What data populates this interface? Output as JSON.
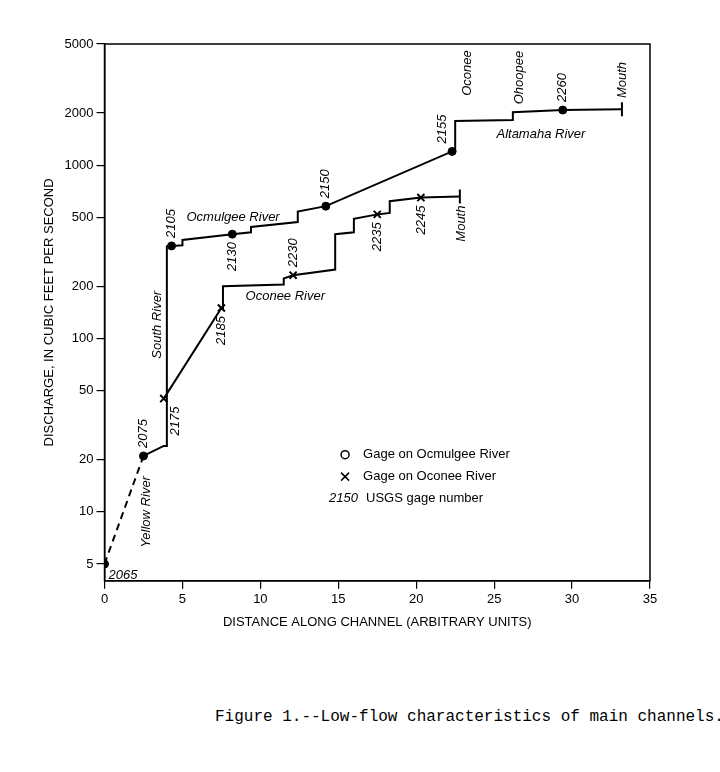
{
  "chart_data": {
    "type": "line",
    "caption": "Figure 1.--Low-flow characteristics of main channels.",
    "x_label": "DISTANCE ALONG CHANNEL (ARBITRARY UNITS)",
    "y_label": "DISCHARGE, IN CUBIC FEET PER SECOND",
    "log": "y",
    "grid": false,
    "xlim": [
      0,
      35
    ],
    "xticks": [
      0,
      5,
      10,
      15,
      20,
      25,
      30,
      35
    ],
    "ylim": [
      4,
      5000
    ],
    "yticks": [
      5,
      10,
      20,
      50,
      100,
      200,
      500,
      1000,
      2000,
      5000
    ],
    "series": [
      {
        "type": "line",
        "color": "#000000",
        "line_style": "dashed",
        "x": [
          0,
          2.5
        ],
        "values": [
          5,
          21
        ]
      },
      {
        "type": "line",
        "color": "#000000",
        "line_style": "solid",
        "marker": "end_bar",
        "x": [
          2.5,
          3.8,
          4.0,
          4.0,
          5.0,
          5.0,
          8.2,
          9.4,
          9.4,
          12.4,
          12.4,
          14.2,
          22.3,
          22.5,
          22.5,
          26.2,
          26.2,
          29.4,
          33.2
        ],
        "values": [
          21,
          24,
          24,
          340,
          345,
          370,
          400,
          410,
          440,
          470,
          540,
          580,
          1200,
          1200,
          1800,
          1820,
          2020,
          2080,
          2100
        ]
      },
      {
        "type": "line",
        "color": "#000000",
        "line_style": "solid",
        "marker": "end_bar",
        "x": [
          3.8,
          7.5,
          7.6,
          7.6,
          11.5,
          11.5,
          12.1,
          14.8,
          14.8,
          16.0,
          16.0,
          17.5,
          18.3,
          18.3,
          20.3,
          22.8
        ],
        "values": [
          45,
          150,
          150,
          200,
          205,
          222,
          232,
          250,
          400,
          410,
          490,
          520,
          530,
          620,
          650,
          660
        ]
      },
      {
        "type": "scatter",
        "name": "Gage on Ocmulgee River",
        "color": "#000000",
        "marker": "circle",
        "x": [
          0,
          2.5,
          4.3,
          8.2,
          14.2,
          22.3,
          29.4
        ],
        "values": [
          5,
          21,
          342,
          400,
          580,
          1200,
          2080
        ],
        "labels": [
          "2065",
          "2075",
          "2105",
          "2130",
          "2150",
          "2155",
          "2260"
        ]
      },
      {
        "type": "scatter",
        "name": "Gage on Oconee River",
        "color": "#000000",
        "marker": "x",
        "x": [
          3.8,
          7.5,
          12.1,
          17.5,
          20.3
        ],
        "values": [
          45,
          150,
          232,
          520,
          650
        ],
        "labels": [
          "2175",
          "2185",
          "2230",
          "2235",
          "2245"
        ]
      }
    ],
    "legend_note": {
      "number": "2150",
      "text": "USGS gage number"
    },
    "annotations": [
      {
        "text": "Yellow River",
        "x": 2.7,
        "y": 10,
        "orientation": "vertical"
      },
      {
        "text": "South River",
        "x": 3.4,
        "y": 120,
        "orientation": "vertical"
      },
      {
        "text": "Ocmulgee River",
        "x": 8.25,
        "y": 500,
        "orientation": "horizontal"
      },
      {
        "text": "Oconee River",
        "x": 11.6,
        "y": 175,
        "orientation": "horizontal"
      },
      {
        "text": "Altamaha River",
        "x": 28.0,
        "y": 1500,
        "orientation": "horizontal"
      },
      {
        "text": "Oconee",
        "x": 23.3,
        "y": 3400,
        "orientation": "vertical"
      },
      {
        "text": "Ohoopee",
        "x": 26.6,
        "y": 3200,
        "orientation": "vertical"
      },
      {
        "text": "Mouth",
        "x": 33.2,
        "y": 3100,
        "orientation": "vertical"
      },
      {
        "text": "Mouth",
        "x": 22.9,
        "y": 460,
        "orientation": "vertical"
      }
    ]
  }
}
